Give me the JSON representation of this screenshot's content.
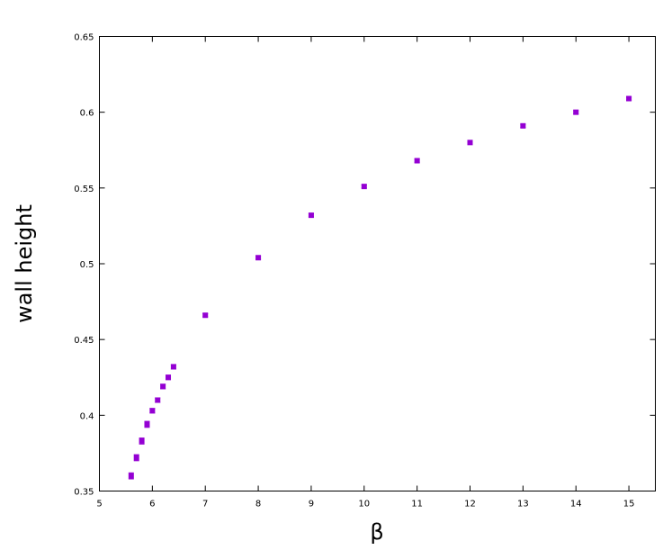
{
  "chart_data": {
    "type": "scatter",
    "title": "",
    "xlabel": "β",
    "ylabel": "wall height",
    "xlim": [
      5,
      15.5
    ],
    "ylim": [
      0.35,
      0.65
    ],
    "xticks": [
      "5",
      "6",
      "7",
      "8",
      "9",
      "10",
      "11",
      "12",
      "13",
      "14",
      "15"
    ],
    "yticks": [
      "0.35",
      "0.4",
      "0.45",
      "0.5",
      "0.55",
      "0.6",
      "0.65"
    ],
    "grid": false,
    "marker_color": "#9400d3",
    "series": [
      {
        "x": [
          5.6,
          5.7,
          5.8,
          5.9,
          6.0,
          6.1,
          6.2,
          6.3,
          6.4,
          7,
          8,
          9,
          10,
          11,
          12,
          13,
          14,
          15
        ],
        "y": [
          0.36,
          0.372,
          0.383,
          0.394,
          0.403,
          0.41,
          0.419,
          0.425,
          0.432,
          0.466,
          0.504,
          0.532,
          0.551,
          0.568,
          0.58,
          0.591,
          0.6,
          0.609
        ],
        "yerr": [
          0.002,
          0.002,
          0.002,
          0.002,
          0.0015,
          0.0015,
          0.0015,
          0.0015,
          0.0015,
          0.001,
          0.001,
          0.001,
          0.001,
          0.001,
          0.001,
          0.001,
          0.001,
          0.001
        ]
      }
    ]
  }
}
